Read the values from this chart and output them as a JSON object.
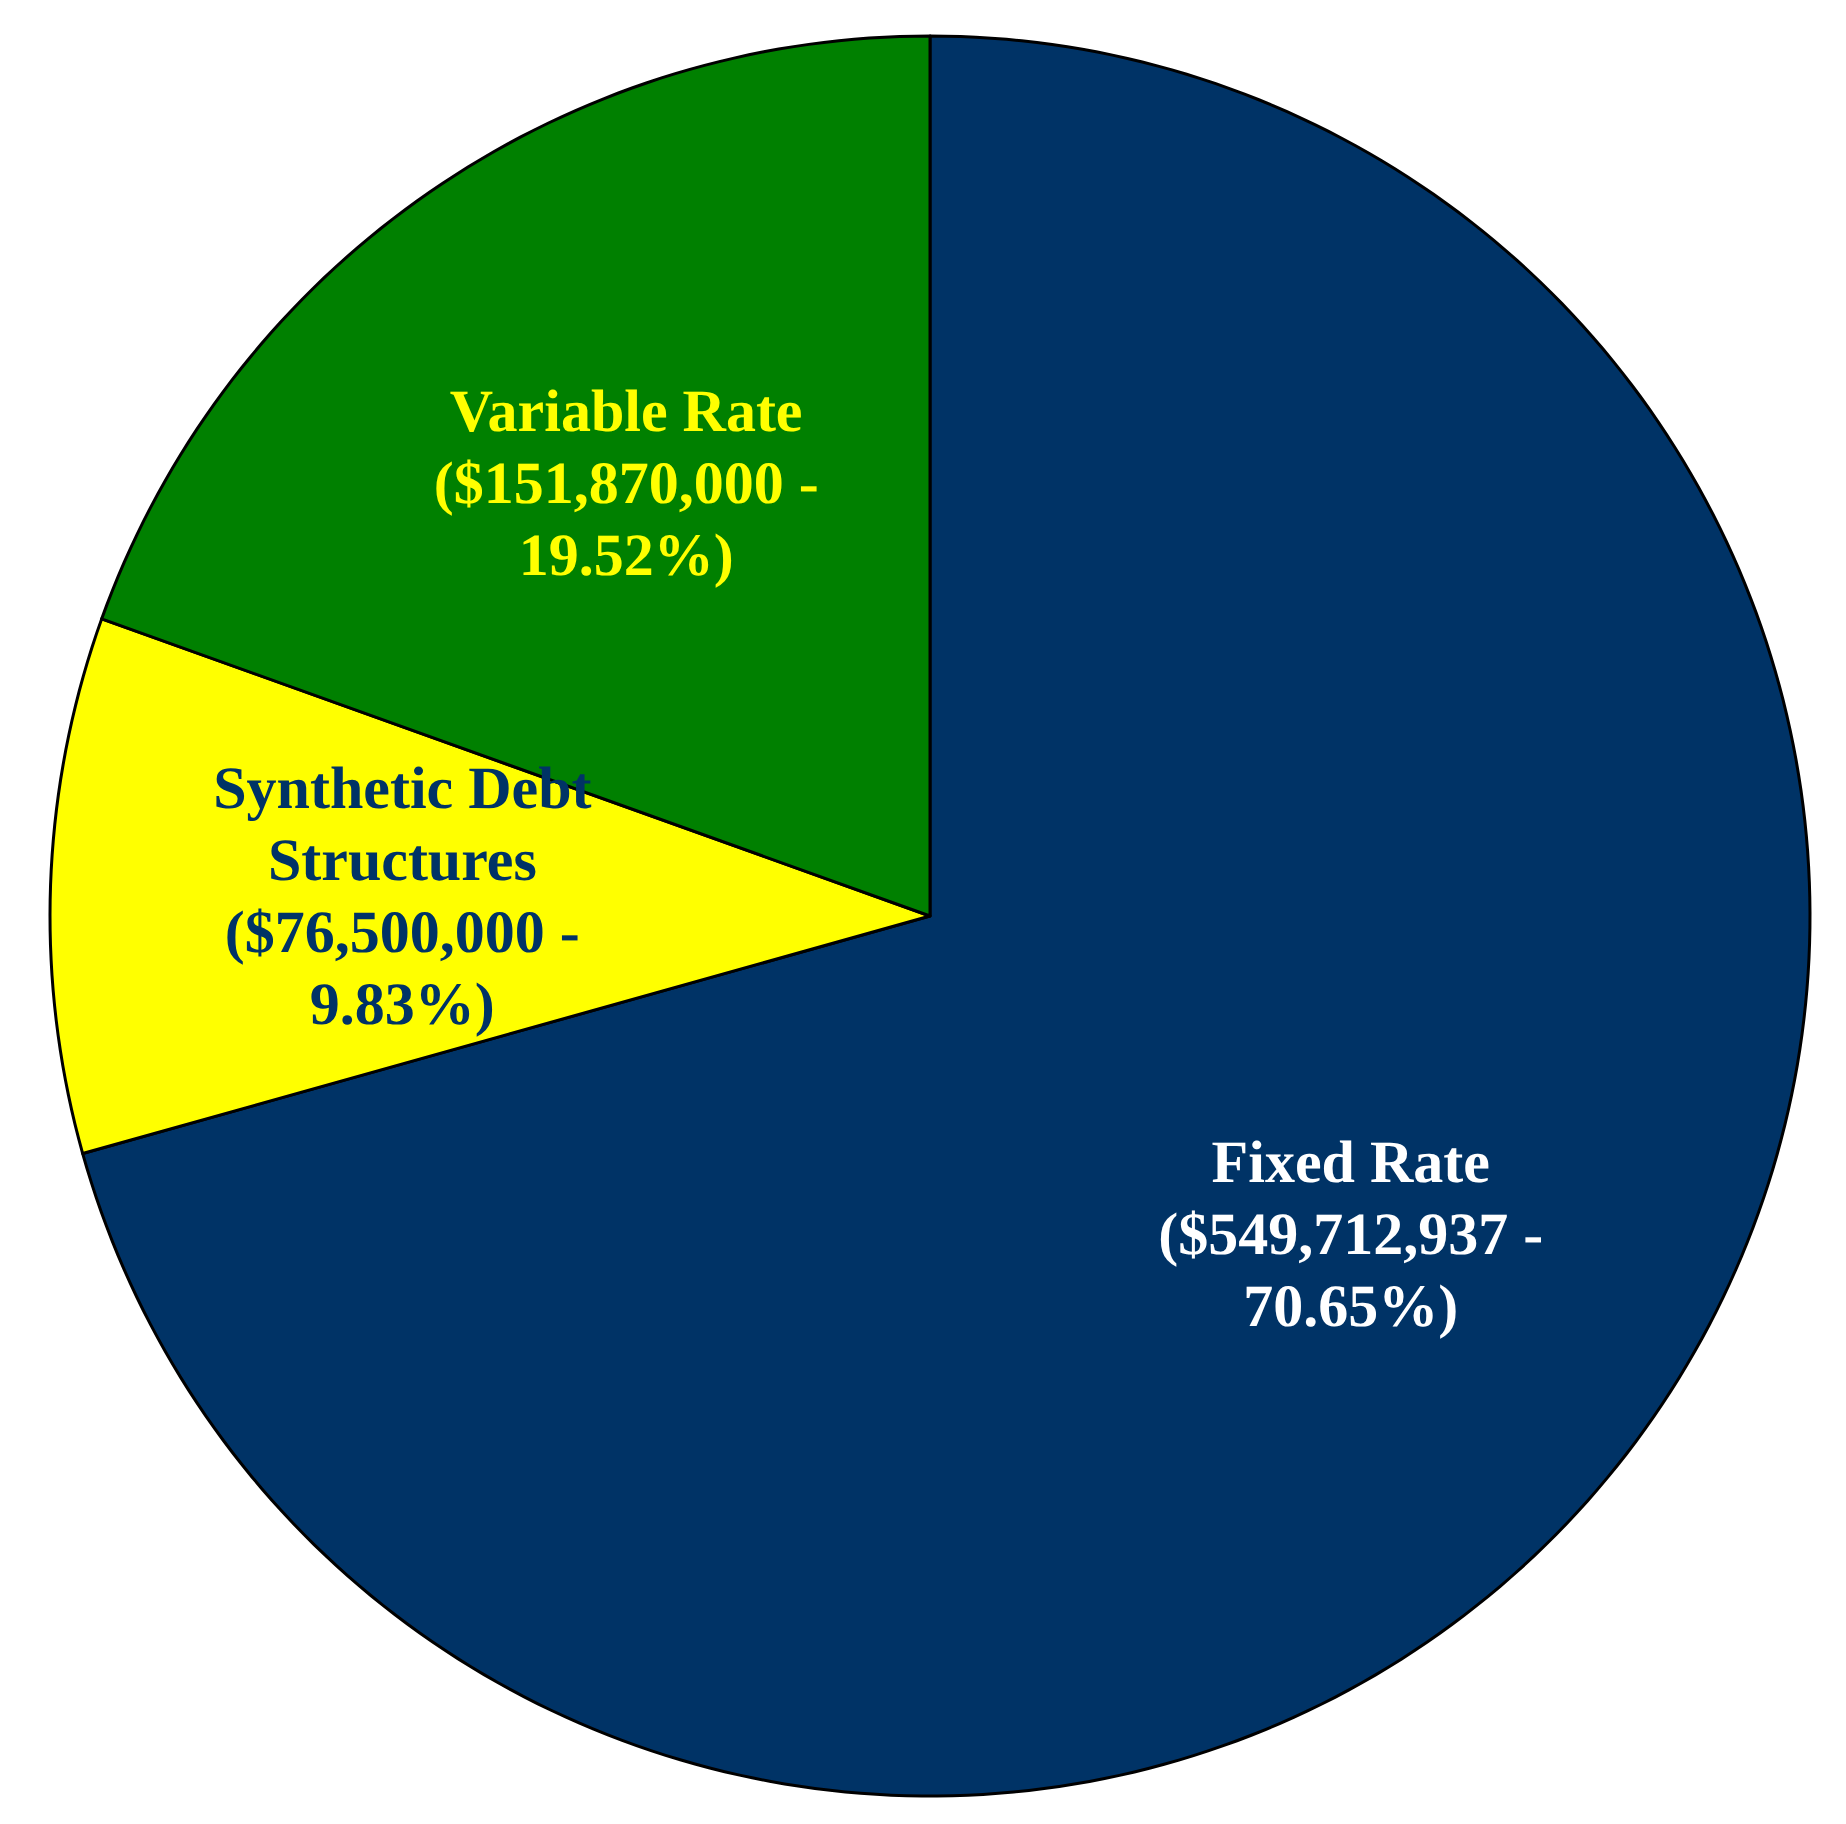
{
  "chart_data": {
    "type": "pie",
    "categories": [
      "Fixed Rate",
      "Synthetic Debt Structures",
      "Variable Rate"
    ],
    "values": [
      549712937,
      76500000,
      151870000
    ],
    "value_labels": [
      "($549,712,937 - 70.65%)",
      "($76,500,000 - 9.83%)",
      "($151,870,000 - 19.52%)"
    ],
    "colors": [
      "#003366",
      "#ffff00",
      "#008000"
    ]
  }
}
